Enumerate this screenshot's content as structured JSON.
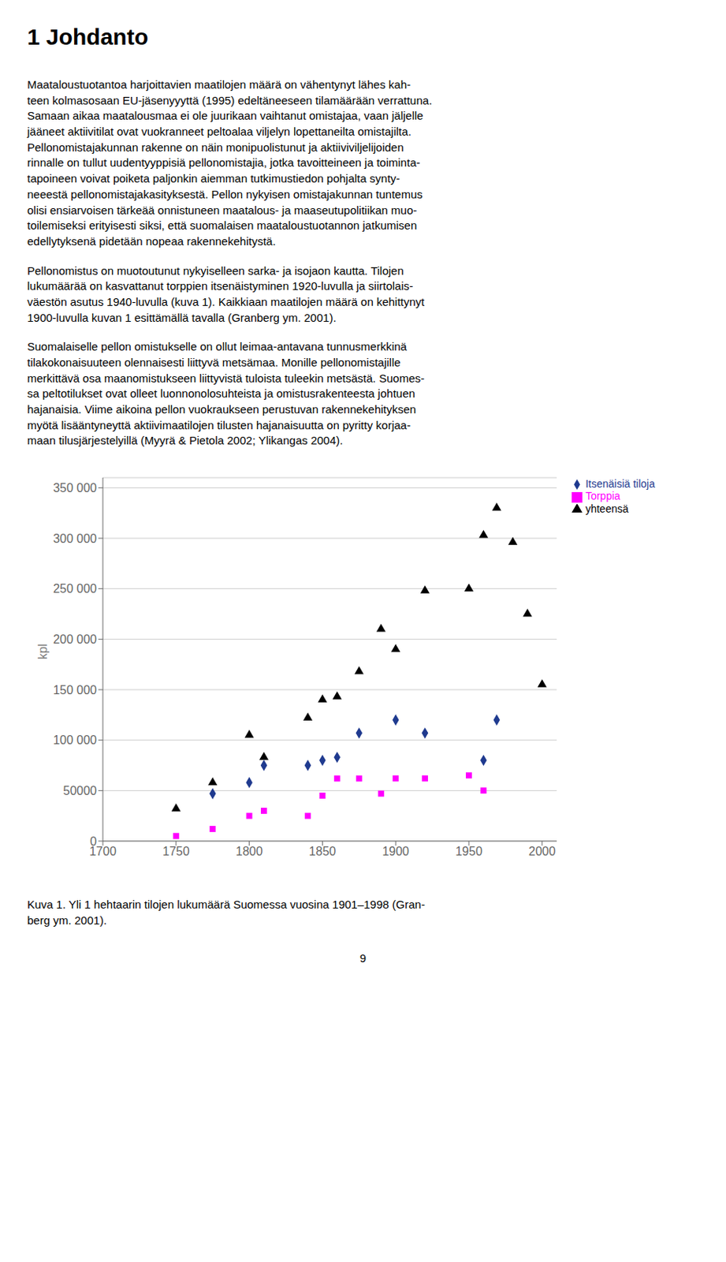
{
  "chart_data": {
    "type": "scatter",
    "title": "1  Johdanto",
    "annotations": [
      "Maataloustuotantoa harjoittavien maatilojen määrä on vähentynyt lähes kah-\nteen kolmasosaan EU-jäsenyyyttä (1995) edeltäneeseen tilamäärään verrattuna.\nSamaan aikaa maatalousmaa ei ole juurikaan vaihtanut omistajaa, vaan jäljelle\njääneet aktiivitilat ovat vuokranneet peltoalaa viljelyn lopettaneilta omistajilta.\nPellonomistajakunnan rakenne on näin monipuolistunut ja aktiiviviljelijoiden\nrinnalle on tullut uudentyyppisiä pellonomistajia, jotka tavoitteineen ja toiminta-\ntapoineen voivat poiketa paljonkin aiemman tutkimustiedon pohjalta synty-\nneeestä pellonomistajakasityksestä. Pellon nykyisen omistajakunnan tuntemus\nolisi ensiarvoisen tärkeää onnistuneen maatalous- ja maaseutupolitiikan muo-\ntoilemiseksi erityisesti siksi, että suomalaisen maataloustuotannon jatkumisen\nedellytyksenä pidetään nopeaa rakennekehitystä.",
      "Pellonomistus on muotoutunut nykyiselleen sarka- ja isojaon kautta. Tilojen\nlukumäärää on kasvattanut torppien itsenäistyminen 1920-luvulla ja siirtolais-\nväestön asutus 1940-luvulla (kuva 1). Kaikkiaan maatilojen määrä on kehittynyt\n1900-luvulla kuvan 1 esittämällä tavalla (Granberg ym. 2001).",
      "Suomalaiselle pellon omistukselle on ollut leimaa-antavana tunnusmerkkinä\ntilakokonaisuuteen olennaisesti liittyvä metsämaa. Monille pellonomistajille\nmerkittävä osa maanomistukseen liittyvistä tuloista tuleekin metsästä. Suomes-\nsa peltotilukset ovat olleet luonnonolosuhteista ja omistusrakenteesta johtuen\nhajanaisia. Viime aikoina pellon vuokraukseen perustuvan rakennekehityksen\nmyötä lisääntyneyttä aktiivimaatilojen tilusten hajanaisuutta on pyritty korjaa-\nmaan tilusjärjestelyillä (Myyrä & Pietola 2002; Ylikangas 2004)."
    ],
    "caption": "Kuva 1. Yli 1 hehtaarin tilojen lukumäärä Suomessa vuosina 1901–1998 (Gran-\nberg ym. 2001).",
    "page_number": "9",
    "ylabel": "kpl",
    "xlim": [
      1700,
      2010
    ],
    "ylim": [
      0,
      360000
    ],
    "xticks": [
      1700,
      1750,
      1800,
      1850,
      1900,
      1950,
      2000
    ],
    "yticks": [
      0,
      50000,
      {
        "value": 100000,
        "label": "100 000"
      },
      {
        "value": 150000,
        "label": "150 000"
      },
      {
        "value": 200000,
        "label": "200 000"
      },
      {
        "value": 250000,
        "label": "250 000"
      },
      {
        "value": 300000,
        "label": "300 000"
      },
      {
        "value": 350000,
        "label": "350 000"
      }
    ],
    "grid": true,
    "legend": "right",
    "series": [
      {
        "name": "yhteensä",
        "color": "#000000",
        "marker": "triangle",
        "x": [
          1750,
          1775,
          1800,
          1810,
          1840,
          1850,
          1860,
          1875,
          1890,
          1900,
          1920,
          1950,
          1960,
          1969,
          1980,
          1990,
          2000
        ],
        "values": [
          32000,
          58000,
          105000,
          83000,
          122000,
          140000,
          143000,
          168000,
          210000,
          190000,
          248000,
          250000,
          303000,
          330000,
          296000,
          225000,
          155000
        ]
      },
      {
        "name": "Itsenäisiä tiloja",
        "color": "#1F3A8F",
        "marker": "diamond",
        "x": [
          1775,
          1800,
          1810,
          1840,
          1850,
          1860,
          1875,
          1900,
          1920,
          1960,
          1969
        ],
        "values": [
          47000,
          58000,
          75000,
          75000,
          80000,
          83000,
          107000,
          120000,
          107000,
          80000,
          120000
        ]
      },
      {
        "name": "Torppia",
        "color": "#FF00FF",
        "marker": "square",
        "x": [
          1750,
          1775,
          1800,
          1810,
          1840,
          1850,
          1860,
          1875,
          1890,
          1900,
          1920,
          1950,
          1960
        ],
        "values": [
          5000,
          12000,
          25000,
          30000,
          25000,
          45000,
          62000,
          62000,
          47000,
          62000,
          62000,
          65000,
          50000
        ]
      }
    ]
  }
}
